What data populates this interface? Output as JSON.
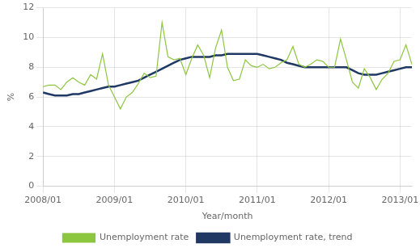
{
  "chart_data": {
    "type": "line",
    "xlabel": "Year/month",
    "ylabel": "%",
    "categories": [
      "2008/01",
      null,
      null,
      null,
      null,
      null,
      null,
      null,
      null,
      null,
      null,
      null,
      "2009/01",
      null,
      null,
      null,
      null,
      null,
      null,
      null,
      null,
      null,
      null,
      null,
      "2010/01",
      null,
      null,
      null,
      null,
      null,
      null,
      null,
      null,
      null,
      null,
      null,
      "2011/01",
      null,
      null,
      null,
      null,
      null,
      null,
      null,
      null,
      null,
      null,
      null,
      "2012/01",
      null,
      null,
      null,
      null,
      null,
      null,
      null,
      null,
      null,
      null,
      null,
      "2013/01",
      null,
      null
    ],
    "series": [
      {
        "name": "Unemployment rate",
        "color": "#8dc63f",
        "values": [
          6.7,
          6.8,
          6.8,
          6.5,
          7.0,
          7.3,
          7.0,
          6.8,
          7.5,
          7.2,
          8.9,
          6.8,
          6.0,
          5.2,
          6.0,
          6.3,
          6.9,
          7.6,
          7.3,
          7.4,
          11.0,
          8.7,
          8.5,
          8.6,
          7.5,
          8.6,
          9.5,
          8.8,
          7.3,
          9.3,
          10.5,
          8.0,
          7.1,
          7.2,
          8.5,
          8.1,
          8.0,
          8.2,
          7.9,
          8.0,
          8.3,
          8.5,
          9.4,
          8.2,
          8.0,
          8.2,
          8.5,
          8.4,
          8.0,
          8.0,
          9.9,
          8.5,
          7.0,
          6.6,
          7.9,
          7.3,
          6.5,
          7.2,
          7.6,
          8.4,
          8.5,
          9.5,
          8.2
        ]
      },
      {
        "name": "Unemployment rate, trend",
        "color": "#1f3864",
        "values": [
          6.3,
          6.2,
          6.1,
          6.1,
          6.1,
          6.2,
          6.2,
          6.3,
          6.4,
          6.5,
          6.6,
          6.7,
          6.7,
          6.8,
          6.9,
          7.0,
          7.1,
          7.3,
          7.5,
          7.7,
          7.9,
          8.1,
          8.3,
          8.5,
          8.6,
          8.7,
          8.7,
          8.7,
          8.7,
          8.8,
          8.8,
          8.9,
          8.9,
          8.9,
          8.9,
          8.9,
          8.9,
          8.8,
          8.7,
          8.6,
          8.5,
          8.3,
          8.2,
          8.1,
          8.0,
          8.0,
          8.0,
          8.0,
          8.0,
          8.0,
          8.0,
          8.0,
          7.8,
          7.6,
          7.5,
          7.5,
          7.5,
          7.6,
          7.7,
          7.8,
          7.9,
          8.0,
          8.0
        ]
      }
    ],
    "ylim": [
      0,
      12
    ],
    "yticks": [
      0,
      2,
      4,
      6,
      8,
      10,
      12
    ],
    "grid": true,
    "legend": "bottom"
  }
}
